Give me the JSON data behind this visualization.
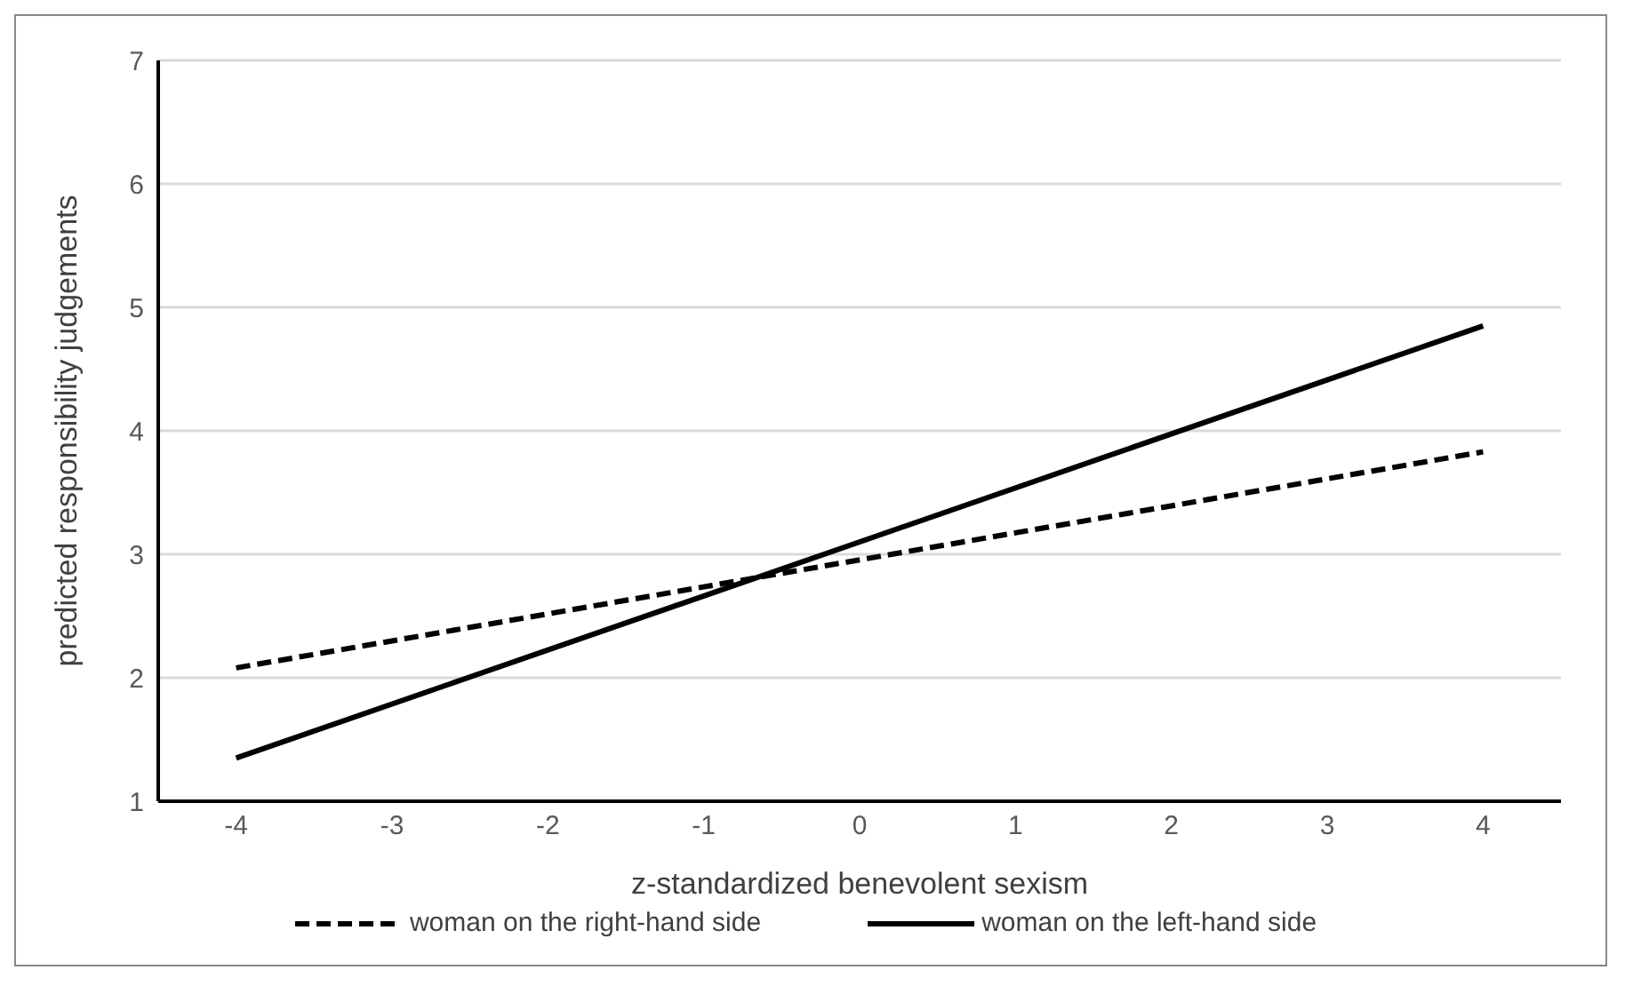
{
  "chart_data": {
    "type": "line",
    "xlabel": "z-standardized benevolent sexism",
    "ylabel": "predicted responsibility judgements",
    "x": [
      -4,
      4
    ],
    "xlim": [
      -4.5,
      4.5
    ],
    "xticks": [
      -4,
      -3,
      -2,
      -1,
      0,
      1,
      2,
      3,
      4
    ],
    "ylim": [
      1,
      7
    ],
    "yticks": [
      1,
      2,
      3,
      4,
      5,
      6,
      7
    ],
    "grid": "y",
    "legend": "bottom",
    "marker": "none",
    "series": [
      {
        "name": "woman on the right-hand side",
        "color": "#000000",
        "line_style": "dashed",
        "values": [
          2.08,
          3.83
        ]
      },
      {
        "name": "woman on the left-hand side",
        "color": "#000000",
        "line_style": "solid",
        "values": [
          1.35,
          4.85
        ]
      }
    ]
  }
}
